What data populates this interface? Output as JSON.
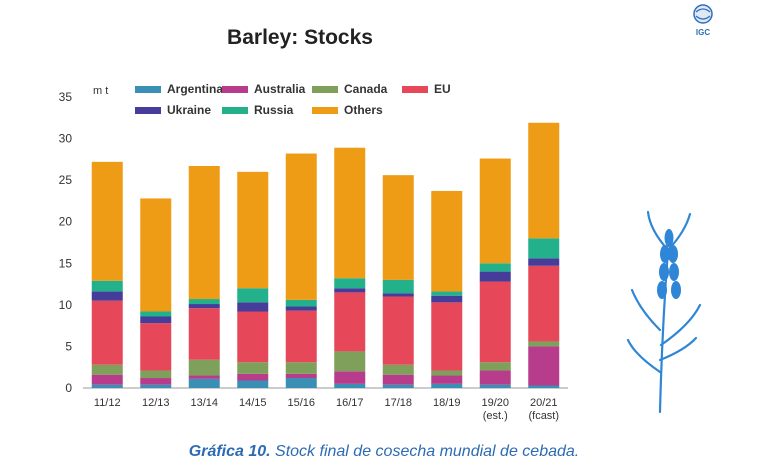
{
  "chart_data": {
    "type": "bar",
    "stacked": true,
    "title": "Barley: Stocks",
    "unit_label": "m t",
    "ylim": [
      0,
      35
    ],
    "yticks": [
      0,
      5,
      10,
      15,
      20,
      25,
      30,
      35
    ],
    "grid": false,
    "legend_position": "top",
    "categories": [
      [
        "11/12"
      ],
      [
        "12/13"
      ],
      [
        "13/14"
      ],
      [
        "14/15"
      ],
      [
        "15/16"
      ],
      [
        "16/17"
      ],
      [
        "17/18"
      ],
      [
        "18/19"
      ],
      [
        "19/20",
        "(est.)"
      ],
      [
        "20/21",
        "(fcast)"
      ]
    ],
    "series": [
      {
        "name": "Argentina",
        "color": "#3a8fb5",
        "values": [
          0.4,
          0.4,
          1.1,
          0.9,
          1.2,
          0.5,
          0.4,
          0.5,
          0.4,
          0.3
        ]
      },
      {
        "name": "Australia",
        "color": "#b83c8c",
        "values": [
          1.2,
          0.8,
          0.4,
          0.8,
          0.5,
          1.5,
          1.2,
          1.0,
          1.7,
          4.7
        ]
      },
      {
        "name": "Canada",
        "color": "#7ea05a",
        "values": [
          1.2,
          0.9,
          1.9,
          1.4,
          1.4,
          2.4,
          1.2,
          0.6,
          1.0,
          0.6
        ]
      },
      {
        "name": "EU",
        "color": "#e6485a",
        "values": [
          7.7,
          5.7,
          6.2,
          6.1,
          6.2,
          7.1,
          8.2,
          8.2,
          9.7,
          9.1
        ]
      },
      {
        "name": "Ukraine",
        "color": "#463c9a",
        "values": [
          1.1,
          0.8,
          0.5,
          1.1,
          0.5,
          0.5,
          0.4,
          0.8,
          1.2,
          0.9
        ]
      },
      {
        "name": "Russia",
        "color": "#22b18a",
        "values": [
          1.3,
          0.6,
          0.6,
          1.7,
          0.8,
          1.2,
          1.6,
          0.5,
          1.0,
          2.4
        ]
      },
      {
        "name": "Others",
        "color": "#ee9b16",
        "values": [
          14.3,
          13.6,
          16.0,
          14.0,
          17.6,
          15.7,
          12.6,
          12.1,
          12.6,
          13.9
        ]
      }
    ]
  },
  "logo": {
    "text": "IGC"
  },
  "caption": {
    "label": "Gráfica 10.",
    "text": " Stock final de cosecha mundial de cebada."
  }
}
